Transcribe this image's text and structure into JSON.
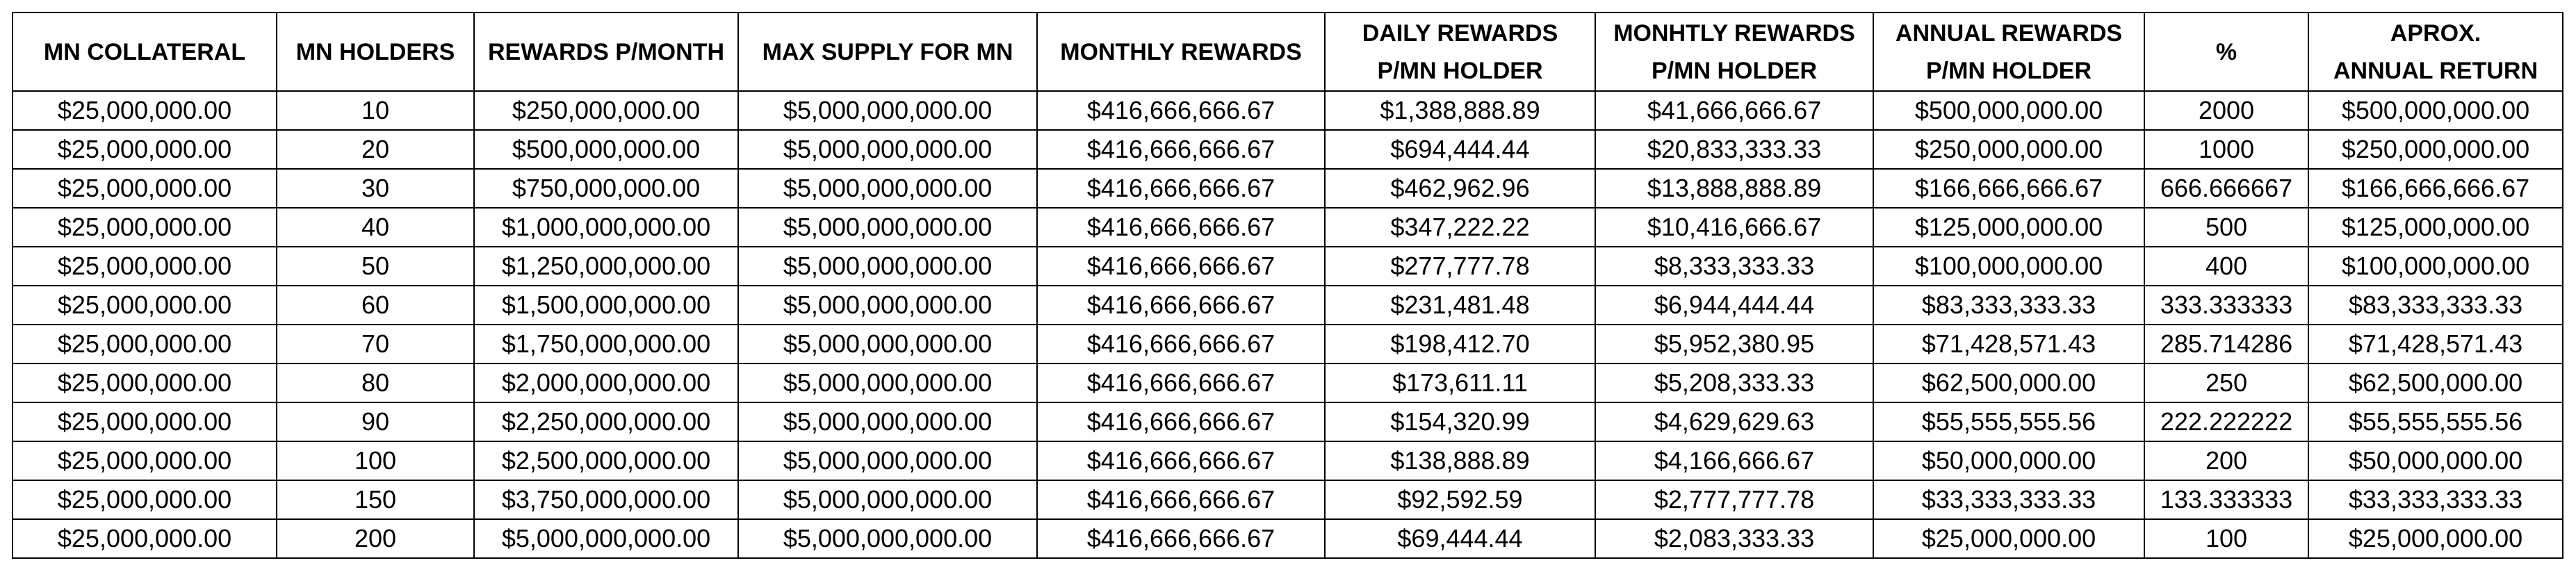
{
  "table": {
    "headers": [
      [
        "MN COLLATERAL"
      ],
      [
        "MN HOLDERS"
      ],
      [
        "REWARDS P/MONTH"
      ],
      [
        "MAX SUPPLY FOR MN"
      ],
      [
        "MONTHLY REWARDS"
      ],
      [
        "DAILY REWARDS",
        "P/MN HOLDER"
      ],
      [
        "MONHTLY REWARDS",
        "P/MN HOLDER"
      ],
      [
        "ANNUAL REWARDS",
        "P/MN HOLDER"
      ],
      [
        "%"
      ],
      [
        "APROX.",
        "ANNUAL RETURN"
      ]
    ],
    "rows": [
      [
        "$25,000,000.00",
        "10",
        "$250,000,000.00",
        "$5,000,000,000.00",
        "$416,666,666.67",
        "$1,388,888.89",
        "$41,666,666.67",
        "$500,000,000.00",
        "2000",
        "$500,000,000.00"
      ],
      [
        "$25,000,000.00",
        "20",
        "$500,000,000.00",
        "$5,000,000,000.00",
        "$416,666,666.67",
        "$694,444.44",
        "$20,833,333.33",
        "$250,000,000.00",
        "1000",
        "$250,000,000.00"
      ],
      [
        "$25,000,000.00",
        "30",
        "$750,000,000.00",
        "$5,000,000,000.00",
        "$416,666,666.67",
        "$462,962.96",
        "$13,888,888.89",
        "$166,666,666.67",
        "666.666667",
        "$166,666,666.67"
      ],
      [
        "$25,000,000.00",
        "40",
        "$1,000,000,000.00",
        "$5,000,000,000.00",
        "$416,666,666.67",
        "$347,222.22",
        "$10,416,666.67",
        "$125,000,000.00",
        "500",
        "$125,000,000.00"
      ],
      [
        "$25,000,000.00",
        "50",
        "$1,250,000,000.00",
        "$5,000,000,000.00",
        "$416,666,666.67",
        "$277,777.78",
        "$8,333,333.33",
        "$100,000,000.00",
        "400",
        "$100,000,000.00"
      ],
      [
        "$25,000,000.00",
        "60",
        "$1,500,000,000.00",
        "$5,000,000,000.00",
        "$416,666,666.67",
        "$231,481.48",
        "$6,944,444.44",
        "$83,333,333.33",
        "333.333333",
        "$83,333,333.33"
      ],
      [
        "$25,000,000.00",
        "70",
        "$1,750,000,000.00",
        "$5,000,000,000.00",
        "$416,666,666.67",
        "$198,412.70",
        "$5,952,380.95",
        "$71,428,571.43",
        "285.714286",
        "$71,428,571.43"
      ],
      [
        "$25,000,000.00",
        "80",
        "$2,000,000,000.00",
        "$5,000,000,000.00",
        "$416,666,666.67",
        "$173,611.11",
        "$5,208,333.33",
        "$62,500,000.00",
        "250",
        "$62,500,000.00"
      ],
      [
        "$25,000,000.00",
        "90",
        "$2,250,000,000.00",
        "$5,000,000,000.00",
        "$416,666,666.67",
        "$154,320.99",
        "$4,629,629.63",
        "$55,555,555.56",
        "222.222222",
        "$55,555,555.56"
      ],
      [
        "$25,000,000.00",
        "100",
        "$2,500,000,000.00",
        "$5,000,000,000.00",
        "$416,666,666.67",
        "$138,888.89",
        "$4,166,666.67",
        "$50,000,000.00",
        "200",
        "$50,000,000.00"
      ],
      [
        "$25,000,000.00",
        "150",
        "$3,750,000,000.00",
        "$5,000,000,000.00",
        "$416,666,666.67",
        "$92,592.59",
        "$2,777,777.78",
        "$33,333,333.33",
        "133.333333",
        "$33,333,333.33"
      ],
      [
        "$25,000,000.00",
        "200",
        "$5,000,000,000.00",
        "$5,000,000,000.00",
        "$416,666,666.67",
        "$69,444.44",
        "$2,083,333.33",
        "$25,000,000.00",
        "100",
        "$25,000,000.00"
      ]
    ]
  }
}
